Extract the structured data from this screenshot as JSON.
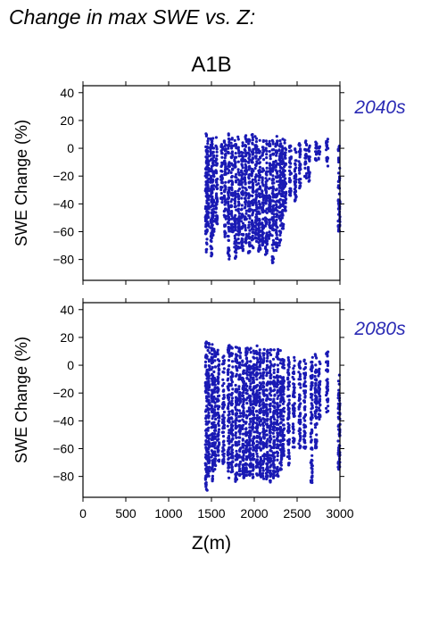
{
  "page_title": "Change in max SWE vs. Z:",
  "scenario_title": "A1B",
  "colors": {
    "points": "#1a1ab4",
    "period_label": "#2a2ab4",
    "frame": "#000000"
  },
  "chart_data": [
    {
      "type": "scatter",
      "period_label": "2040s",
      "ylabel": "SWE Change (%)",
      "xlabel": "",
      "xlim": [
        0,
        3000
      ],
      "ylim": [
        -95,
        45
      ],
      "xticks": [
        0,
        500,
        1000,
        1500,
        2000,
        2500,
        3000
      ],
      "yticks": [
        -80,
        -60,
        -40,
        -20,
        0,
        20,
        40
      ],
      "show_x_tick_labels": false,
      "series": [
        {
          "columns": [
            {
              "x": 1440,
              "ymin": -75,
              "ymax": 12
            },
            {
              "x": 1460,
              "ymin": -60,
              "ymax": 10
            },
            {
              "x": 1500,
              "ymin": -78,
              "ymax": 9
            },
            {
              "x": 1520,
              "ymin": -65,
              "ymax": 8
            },
            {
              "x": 1560,
              "ymin": -55,
              "ymax": 9
            },
            {
              "x": 1620,
              "ymin": -40,
              "ymax": 3
            },
            {
              "x": 1660,
              "ymin": -65,
              "ymax": 7
            },
            {
              "x": 1700,
              "ymin": -80,
              "ymax": 11
            },
            {
              "x": 1740,
              "ymin": -62,
              "ymax": 10
            },
            {
              "x": 1780,
              "ymin": -80,
              "ymax": 8
            },
            {
              "x": 1820,
              "ymin": -72,
              "ymax": 9
            },
            {
              "x": 1860,
              "ymin": -75,
              "ymax": 10
            },
            {
              "x": 1900,
              "ymin": -70,
              "ymax": 11
            },
            {
              "x": 1940,
              "ymin": -76,
              "ymax": 9
            },
            {
              "x": 1980,
              "ymin": -73,
              "ymax": 10
            },
            {
              "x": 2020,
              "ymin": -68,
              "ymax": 9
            },
            {
              "x": 2060,
              "ymin": -75,
              "ymax": 7
            },
            {
              "x": 2100,
              "ymin": -70,
              "ymax": 9
            },
            {
              "x": 2140,
              "ymin": -77,
              "ymax": 8
            },
            {
              "x": 2180,
              "ymin": -65,
              "ymax": 6
            },
            {
              "x": 2220,
              "ymin": -84,
              "ymax": 8
            },
            {
              "x": 2260,
              "ymin": -75,
              "ymax": 9
            },
            {
              "x": 2300,
              "ymin": -70,
              "ymax": 10
            },
            {
              "x": 2330,
              "ymin": -60,
              "ymax": 7
            },
            {
              "x": 2360,
              "ymin": -45,
              "ymax": 6
            },
            {
              "x": 2420,
              "ymin": -35,
              "ymax": 5
            },
            {
              "x": 2480,
              "ymin": -38,
              "ymax": 4
            },
            {
              "x": 2530,
              "ymin": -30,
              "ymax": 5
            },
            {
              "x": 2600,
              "ymin": -22,
              "ymax": 6
            },
            {
              "x": 2640,
              "ymin": -25,
              "ymax": 4
            },
            {
              "x": 2720,
              "ymin": -12,
              "ymax": 5
            },
            {
              "x": 2760,
              "ymin": -8,
              "ymax": 2
            },
            {
              "x": 2850,
              "ymin": -15,
              "ymax": 7
            },
            {
              "x": 2990,
              "ymin": -60,
              "ymax": 2
            }
          ]
        }
      ]
    },
    {
      "type": "scatter",
      "period_label": "2080s",
      "ylabel": "SWE Change (%)",
      "xlabel": "Z(m)",
      "xlim": [
        0,
        3000
      ],
      "ylim": [
        -95,
        45
      ],
      "xticks": [
        0,
        500,
        1000,
        1500,
        2000,
        2500,
        3000
      ],
      "yticks": [
        -80,
        -60,
        -40,
        -20,
        0,
        20,
        40
      ],
      "show_x_tick_labels": true,
      "series": [
        {
          "columns": [
            {
              "x": 1440,
              "ymin": -90,
              "ymax": 18
            },
            {
              "x": 1470,
              "ymin": -80,
              "ymax": 16
            },
            {
              "x": 1510,
              "ymin": -85,
              "ymax": 17
            },
            {
              "x": 1540,
              "ymin": -75,
              "ymax": 15
            },
            {
              "x": 1580,
              "ymin": -70,
              "ymax": 12
            },
            {
              "x": 1640,
              "ymin": -72,
              "ymax": 8
            },
            {
              "x": 1700,
              "ymin": -82,
              "ymax": 16
            },
            {
              "x": 1740,
              "ymin": -78,
              "ymax": 14
            },
            {
              "x": 1790,
              "ymin": -84,
              "ymax": 14
            },
            {
              "x": 1830,
              "ymin": -80,
              "ymax": 13
            },
            {
              "x": 1870,
              "ymin": -83,
              "ymax": 15
            },
            {
              "x": 1910,
              "ymin": -80,
              "ymax": 14
            },
            {
              "x": 1950,
              "ymin": -84,
              "ymax": 14
            },
            {
              "x": 1990,
              "ymin": -82,
              "ymax": 13
            },
            {
              "x": 2030,
              "ymin": -80,
              "ymax": 14
            },
            {
              "x": 2070,
              "ymin": -84,
              "ymax": 13
            },
            {
              "x": 2110,
              "ymin": -82,
              "ymax": 12
            },
            {
              "x": 2150,
              "ymin": -83,
              "ymax": 14
            },
            {
              "x": 2190,
              "ymin": -85,
              "ymax": 12
            },
            {
              "x": 2230,
              "ymin": -83,
              "ymax": 13
            },
            {
              "x": 2270,
              "ymin": -80,
              "ymax": 12
            },
            {
              "x": 2310,
              "ymin": -76,
              "ymax": 11
            },
            {
              "x": 2340,
              "ymin": -65,
              "ymax": 8
            },
            {
              "x": 2400,
              "ymin": -72,
              "ymax": 6
            },
            {
              "x": 2460,
              "ymin": -60,
              "ymax": 6
            },
            {
              "x": 2530,
              "ymin": -60,
              "ymax": 5
            },
            {
              "x": 2590,
              "ymin": -60,
              "ymax": 5
            },
            {
              "x": 2670,
              "ymin": -85,
              "ymax": 6
            },
            {
              "x": 2720,
              "ymin": -60,
              "ymax": 8
            },
            {
              "x": 2760,
              "ymin": -40,
              "ymax": 4
            },
            {
              "x": 2850,
              "ymin": -35,
              "ymax": 10
            },
            {
              "x": 2990,
              "ymin": -75,
              "ymax": -5
            }
          ]
        }
      ]
    }
  ]
}
